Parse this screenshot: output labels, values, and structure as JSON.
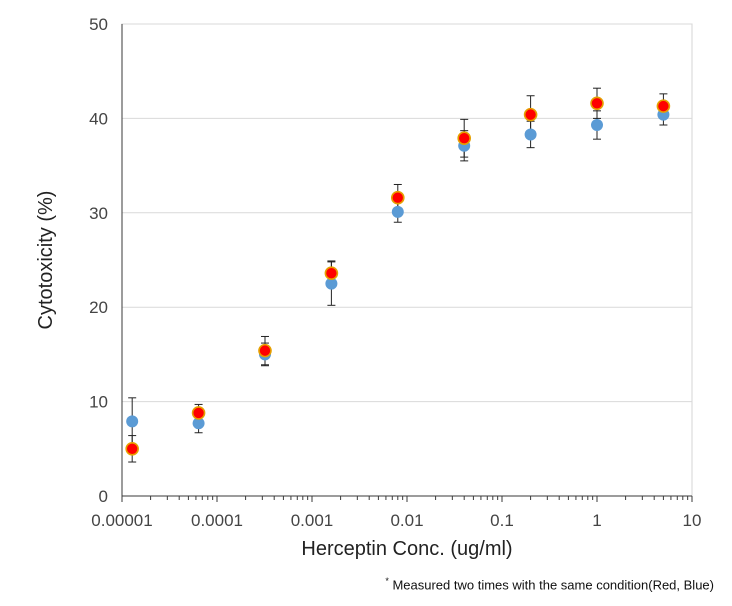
{
  "chart_data": {
    "type": "scatter",
    "xlabel": "Herceptin Conc. (ug/ml)",
    "ylabel": "Cytotoxicity (%)",
    "x_scale": "log",
    "xlim": [
      1e-05,
      10
    ],
    "ylim": [
      0,
      50
    ],
    "x_ticks": [
      1e-05,
      0.0001,
      0.001,
      0.01,
      0.1,
      1,
      10
    ],
    "x_tick_labels": [
      "0.00001",
      "0.0001",
      "0.001",
      "0.01",
      "0.1",
      "1",
      "10"
    ],
    "y_ticks": [
      0,
      10,
      20,
      30,
      40,
      50
    ],
    "y_tick_labels": [
      "0",
      "10",
      "20",
      "30",
      "40",
      "50"
    ],
    "grid": "horizontal",
    "x": [
      1.28e-05,
      6.4e-05,
      0.00032,
      0.0016,
      0.008,
      0.04,
      0.2,
      1,
      5
    ],
    "series": [
      {
        "color": "#5b9bd5",
        "values": [
          7.9,
          7.7,
          15.0,
          22.5,
          30.1,
          37.1,
          38.3,
          39.3,
          40.4
        ],
        "error": [
          2.5,
          1.0,
          1.2,
          2.3,
          1.1,
          1.6,
          1.4,
          1.5,
          1.1
        ]
      },
      {
        "color": "#ff0000",
        "edge_color": "#e6a000",
        "values": [
          5.0,
          8.8,
          15.4,
          23.6,
          31.6,
          37.9,
          40.4,
          41.6,
          41.3
        ],
        "error": [
          1.4,
          0.9,
          1.5,
          1.3,
          1.4,
          2.0,
          2.0,
          1.6,
          1.3
        ]
      }
    ],
    "footnote_mark": "*",
    "footnote": "Measured two times with the same condition(Red, Blue)"
  }
}
